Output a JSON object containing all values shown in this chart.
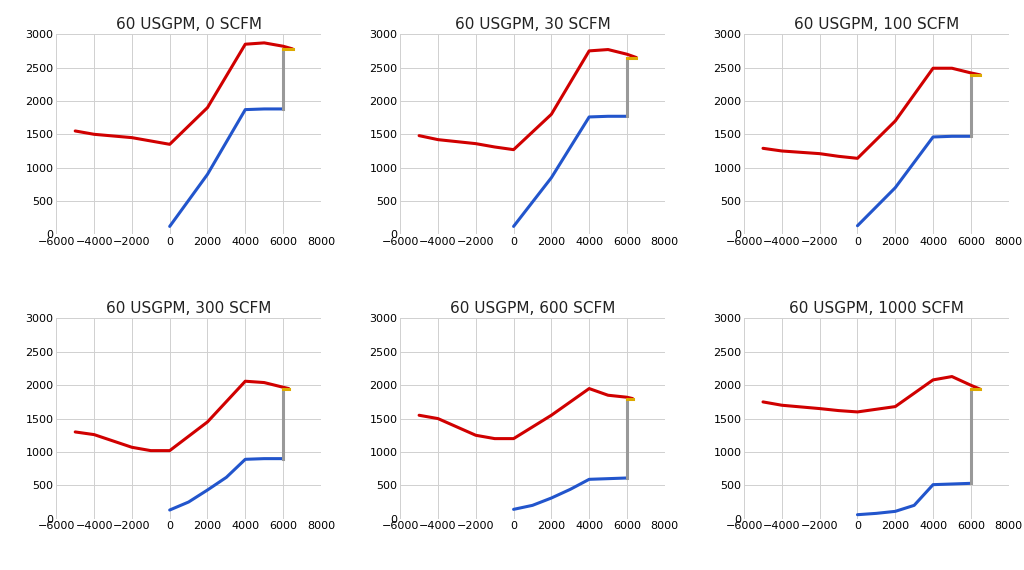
{
  "subplots": [
    {
      "title": "60 USGPM, 0 SCFM",
      "red": {
        "x": [
          -5000,
          -4000,
          -2000,
          -1000,
          0,
          2000,
          4000,
          5000,
          6000,
          6500
        ],
        "y": [
          1550,
          1500,
          1450,
          1400,
          1350,
          1900,
          2850,
          2870,
          2820,
          2780
        ]
      },
      "blue": {
        "x": [
          0,
          2000,
          4000,
          5000,
          6000
        ],
        "y": [
          120,
          900,
          1870,
          1880,
          1880
        ]
      },
      "gray_x": [
        6000,
        6000
      ],
      "gray_y": [
        1880,
        2780
      ],
      "yellow_x": [
        6000,
        6500
      ],
      "yellow_y": [
        2780,
        2780
      ]
    },
    {
      "title": "60 USGPM, 30 SCFM",
      "red": {
        "x": [
          -5000,
          -4000,
          -2000,
          -1000,
          0,
          2000,
          4000,
          5000,
          6000,
          6500
        ],
        "y": [
          1480,
          1420,
          1360,
          1310,
          1270,
          1800,
          2750,
          2770,
          2700,
          2650
        ]
      },
      "blue": {
        "x": [
          0,
          2000,
          4000,
          5000,
          6000
        ],
        "y": [
          120,
          850,
          1760,
          1770,
          1770
        ]
      },
      "gray_x": [
        6000,
        6000
      ],
      "gray_y": [
        1770,
        2650
      ],
      "yellow_x": [
        6000,
        6500
      ],
      "yellow_y": [
        2650,
        2650
      ]
    },
    {
      "title": "60 USGPM, 100 SCFM",
      "red": {
        "x": [
          -5000,
          -4000,
          -2000,
          -1000,
          0,
          2000,
          4000,
          5000,
          6000,
          6500
        ],
        "y": [
          1290,
          1250,
          1210,
          1170,
          1140,
          1700,
          2490,
          2490,
          2420,
          2390
        ]
      },
      "blue": {
        "x": [
          0,
          2000,
          4000,
          5000,
          6000
        ],
        "y": [
          130,
          700,
          1460,
          1470,
          1470
        ]
      },
      "gray_x": [
        6000,
        6000
      ],
      "gray_y": [
        1470,
        2390
      ],
      "yellow_x": [
        6000,
        6500
      ],
      "yellow_y": [
        2390,
        2390
      ]
    },
    {
      "title": "60 USGPM, 300 SCFM",
      "red": {
        "x": [
          -5000,
          -4000,
          -2000,
          -1000,
          0,
          2000,
          4000,
          5000,
          6000,
          6300
        ],
        "y": [
          1300,
          1260,
          1070,
          1020,
          1020,
          1450,
          2060,
          2040,
          1970,
          1950
        ]
      },
      "blue": {
        "x": [
          0,
          1000,
          2000,
          3000,
          4000,
          5000,
          6000
        ],
        "y": [
          130,
          250,
          430,
          620,
          890,
          900,
          900
        ]
      },
      "gray_x": [
        6000,
        6000
      ],
      "gray_y": [
        900,
        1950
      ],
      "yellow_x": [
        6000,
        6300
      ],
      "yellow_y": [
        1950,
        1950
      ]
    },
    {
      "title": "60 USGPM, 600 SCFM",
      "red": {
        "x": [
          -5000,
          -4000,
          -2000,
          -1000,
          0,
          2000,
          4000,
          5000,
          6000,
          6300
        ],
        "y": [
          1550,
          1500,
          1250,
          1200,
          1200,
          1550,
          1950,
          1850,
          1820,
          1800
        ]
      },
      "blue": {
        "x": [
          0,
          1000,
          2000,
          3000,
          4000,
          5000,
          6000
        ],
        "y": [
          140,
          200,
          310,
          440,
          590,
          600,
          610
        ]
      },
      "gray_x": [
        6000,
        6000
      ],
      "gray_y": [
        610,
        1800
      ],
      "yellow_x": [
        6000,
        6300
      ],
      "yellow_y": [
        1800,
        1800
      ]
    },
    {
      "title": "60 USGPM, 1000 SCFM",
      "red": {
        "x": [
          -5000,
          -4000,
          -2000,
          -1000,
          0,
          2000,
          4000,
          5000,
          6000,
          6500
        ],
        "y": [
          1750,
          1700,
          1650,
          1620,
          1600,
          1680,
          2080,
          2130,
          2000,
          1940
        ]
      },
      "blue": {
        "x": [
          0,
          1000,
          2000,
          3000,
          4000,
          5000,
          6000
        ],
        "y": [
          60,
          80,
          110,
          200,
          510,
          520,
          530
        ]
      },
      "gray_x": [
        6000,
        6000
      ],
      "gray_y": [
        530,
        1940
      ],
      "yellow_x": [
        6000,
        6500
      ],
      "yellow_y": [
        1940,
        1940
      ]
    }
  ],
  "xlim": [
    -6000,
    8000
  ],
  "ylim": [
    0,
    3000
  ],
  "xticks": [
    -6000,
    -4000,
    -2000,
    0,
    2000,
    4000,
    6000,
    8000
  ],
  "yticks": [
    0,
    500,
    1000,
    1500,
    2000,
    2500,
    3000
  ],
  "red_color": "#d00000",
  "blue_color": "#2255cc",
  "gray_color": "#999999",
  "yellow_color": "#ddaa00",
  "bg_color": "#ffffff",
  "grid_color": "#d0d0d0",
  "linewidth": 2.2,
  "title_fontsize": 11,
  "tick_fontsize": 8
}
